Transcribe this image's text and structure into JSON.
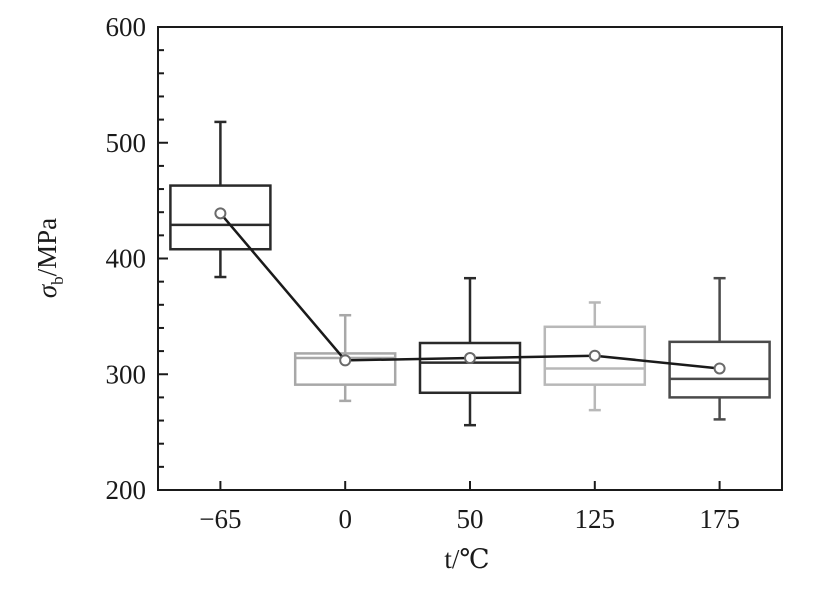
{
  "chart_data": {
    "type": "box",
    "categories": [
      "-65",
      "0",
      "50",
      "125",
      "175"
    ],
    "xlabel": "t/℃",
    "ylabel": {
      "symbol": "σ",
      "subscript": "b",
      "unit": "/MPa"
    },
    "ylim": [
      200,
      600
    ],
    "yticks": [
      "200",
      "300",
      "400",
      "500",
      "600"
    ],
    "grid": false,
    "boxes": [
      {
        "category": "-65",
        "whisker_low": 384,
        "q1": 408,
        "median": 429,
        "q3": 463,
        "whisker_high": 518,
        "mean": 439,
        "color": "#2a2a2a"
      },
      {
        "category": "0",
        "whisker_low": 277,
        "q1": 291,
        "median": 314,
        "q3": 318,
        "whisker_high": 351,
        "mean": 312,
        "color": "#a8a8a8"
      },
      {
        "category": "50",
        "whisker_low": 256,
        "q1": 284,
        "median": 310,
        "q3": 327,
        "whisker_high": 383,
        "mean": 314,
        "color": "#2a2a2a"
      },
      {
        "category": "125",
        "whisker_low": 269,
        "q1": 291,
        "median": 305,
        "q3": 341,
        "whisker_high": 362,
        "mean": 316,
        "color": "#b8b8b8"
      },
      {
        "category": "175",
        "whisker_low": 261,
        "q1": 280,
        "median": 296,
        "q3": 328,
        "whisker_high": 383,
        "mean": 305,
        "color": "#4a4a4a"
      }
    ],
    "mean_line_color": "#1a1a1a"
  }
}
